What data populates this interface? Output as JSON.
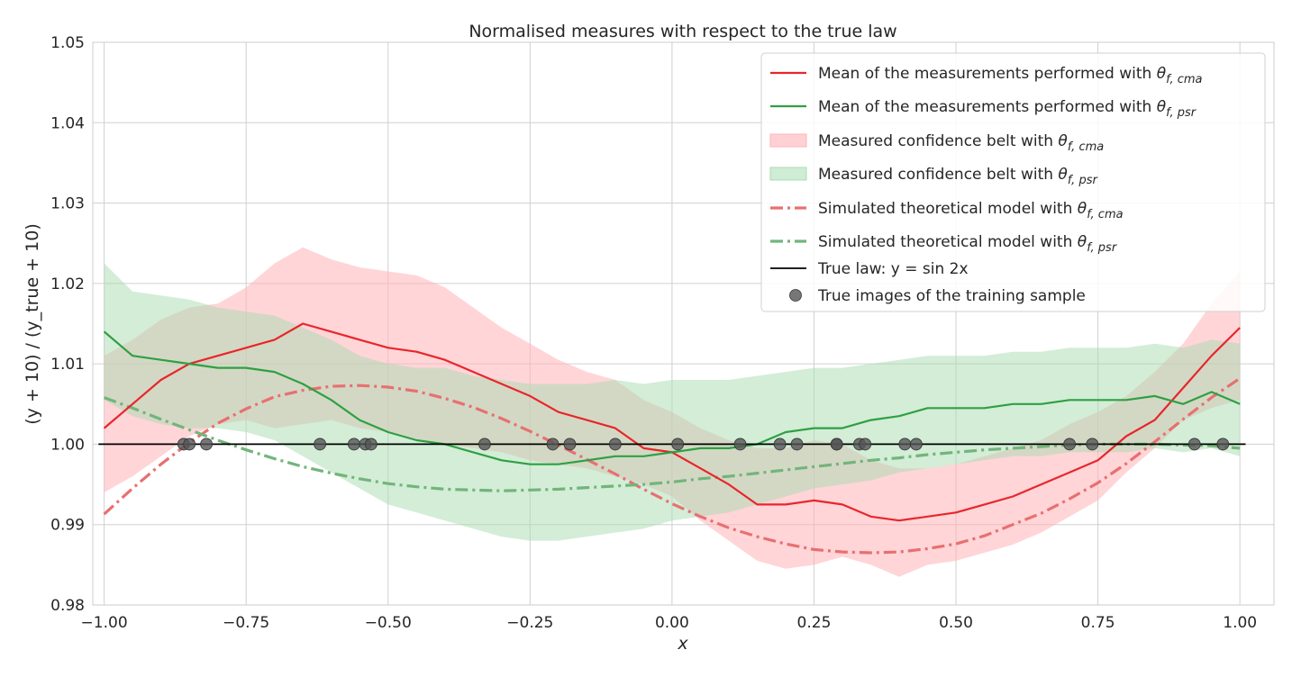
{
  "chart_data": {
    "type": "line",
    "title": "Normalised measures with respect to the true law",
    "xlabel": "x",
    "ylabel": "(y + 10) / (y_true + 10)",
    "xlim": [
      -1.02,
      1.06
    ],
    "ylim": [
      0.98,
      1.05
    ],
    "xticks": [
      -1.0,
      -0.75,
      -0.5,
      -0.25,
      0.0,
      0.25,
      0.5,
      0.75,
      1.0
    ],
    "xtick_labels": [
      "−1.00",
      "−0.75",
      "−0.50",
      "−0.25",
      "0.00",
      "0.25",
      "0.50",
      "0.75",
      "1.00"
    ],
    "yticks": [
      0.98,
      0.99,
      1.0,
      1.01,
      1.02,
      1.03,
      1.04,
      1.05
    ],
    "ytick_labels": [
      "0.98",
      "0.99",
      "1.00",
      "1.01",
      "1.02",
      "1.03",
      "1.04",
      "1.05"
    ],
    "grid": true,
    "legend_position": "top-right",
    "colors": {
      "cma_line": "#e8262b",
      "psr_line": "#2ea043",
      "cma_band": "#ffb3b8",
      "psr_band": "#a8dcb0",
      "cma_model": "#e87070",
      "psr_model": "#72b57a",
      "true_law": "#000000",
      "samples": "#555555"
    },
    "legend": [
      {
        "key": "cma_mean",
        "text": "Mean of the measurements performed with ",
        "math": "θ",
        "sub": "f, cma"
      },
      {
        "key": "psr_mean",
        "text": "Mean of the measurements performed with ",
        "math": "θ",
        "sub": "f, psr"
      },
      {
        "key": "cma_belt",
        "text": "Measured confidence belt with ",
        "math": "θ",
        "sub": "f, cma"
      },
      {
        "key": "psr_belt",
        "text": "Measured confidence belt with ",
        "math": "θ",
        "sub": "f, psr"
      },
      {
        "key": "cma_model",
        "text": "Simulated theoretical model with ",
        "math": "θ",
        "sub": "f, cma"
      },
      {
        "key": "psr_model",
        "text": "Simulated theoretical model with ",
        "math": "θ",
        "sub": "f, psr"
      },
      {
        "key": "true_law",
        "text": "True law: y = sin 2x",
        "math": "",
        "sub": ""
      },
      {
        "key": "samples",
        "text": "True images of the training sample",
        "math": "",
        "sub": ""
      }
    ],
    "series": [
      {
        "name": "Mean of the measurements performed with θ f, cma",
        "style": "solid",
        "x": [
          -1.0,
          -0.95,
          -0.9,
          -0.85,
          -0.8,
          -0.75,
          -0.7,
          -0.65,
          -0.6,
          -0.55,
          -0.5,
          -0.45,
          -0.4,
          -0.35,
          -0.3,
          -0.25,
          -0.2,
          -0.15,
          -0.1,
          -0.05,
          0.0,
          0.05,
          0.1,
          0.15,
          0.2,
          0.25,
          0.3,
          0.35,
          0.4,
          0.45,
          0.5,
          0.55,
          0.6,
          0.65,
          0.7,
          0.75,
          0.8,
          0.85,
          0.9,
          0.95,
          1.0
        ],
        "y": [
          1.002,
          1.005,
          1.008,
          1.01,
          1.011,
          1.012,
          1.013,
          1.015,
          1.014,
          1.013,
          1.012,
          1.0115,
          1.0105,
          1.009,
          1.0075,
          1.006,
          1.004,
          1.003,
          1.002,
          0.9995,
          0.999,
          0.997,
          0.995,
          0.9925,
          0.9925,
          0.993,
          0.9925,
          0.991,
          0.9905,
          0.991,
          0.9915,
          0.9925,
          0.9935,
          0.995,
          0.9965,
          0.998,
          1.001,
          1.003,
          1.007,
          1.011,
          1.0145
        ]
      },
      {
        "name": "Mean of the measurements performed with θ f, psr",
        "style": "solid",
        "x": [
          -1.0,
          -0.95,
          -0.9,
          -0.85,
          -0.8,
          -0.75,
          -0.7,
          -0.65,
          -0.6,
          -0.55,
          -0.5,
          -0.45,
          -0.4,
          -0.35,
          -0.3,
          -0.25,
          -0.2,
          -0.15,
          -0.1,
          -0.05,
          0.0,
          0.05,
          0.1,
          0.15,
          0.2,
          0.25,
          0.3,
          0.35,
          0.4,
          0.45,
          0.5,
          0.55,
          0.6,
          0.65,
          0.7,
          0.75,
          0.8,
          0.85,
          0.9,
          0.95,
          1.0
        ],
        "y": [
          1.014,
          1.011,
          1.0105,
          1.01,
          1.0095,
          1.0095,
          1.009,
          1.0075,
          1.0055,
          1.003,
          1.0015,
          1.0005,
          1.0,
          0.999,
          0.998,
          0.9975,
          0.9975,
          0.998,
          0.9985,
          0.9985,
          0.999,
          0.9995,
          0.9995,
          1.0,
          1.0015,
          1.002,
          1.002,
          1.003,
          1.0035,
          1.0045,
          1.0045,
          1.0045,
          1.005,
          1.005,
          1.0055,
          1.0055,
          1.0055,
          1.006,
          1.005,
          1.0065,
          1.005
        ]
      },
      {
        "name": "Simulated theoretical model with θ f, cma",
        "style": "dashdot",
        "x": [
          -1.0,
          -0.95,
          -0.9,
          -0.85,
          -0.8,
          -0.75,
          -0.7,
          -0.65,
          -0.6,
          -0.55,
          -0.5,
          -0.45,
          -0.4,
          -0.35,
          -0.3,
          -0.25,
          -0.2,
          -0.15,
          -0.1,
          -0.05,
          0.0,
          0.05,
          0.1,
          0.15,
          0.2,
          0.25,
          0.3,
          0.35,
          0.4,
          0.45,
          0.5,
          0.55,
          0.6,
          0.65,
          0.7,
          0.75,
          0.8,
          0.85,
          0.9,
          0.95,
          1.0
        ],
        "y": [
          0.9913,
          0.9945,
          0.9975,
          1.0002,
          1.0026,
          1.0044,
          1.0059,
          1.0067,
          1.0072,
          1.0073,
          1.0071,
          1.0066,
          1.0057,
          1.0046,
          1.0032,
          1.0016,
          0.9999,
          0.9981,
          0.9963,
          0.9944,
          0.9926,
          0.991,
          0.9896,
          0.9885,
          0.9876,
          0.9869,
          0.9866,
          0.9865,
          0.9866,
          0.987,
          0.9876,
          0.9886,
          0.99,
          0.9914,
          0.9932,
          0.9952,
          0.9976,
          1.0003,
          1.0031,
          1.0058,
          1.0082
        ]
      },
      {
        "name": "Simulated theoretical model with θ f, psr",
        "style": "dashdot",
        "x": [
          -1.0,
          -0.95,
          -0.9,
          -0.85,
          -0.8,
          -0.75,
          -0.7,
          -0.65,
          -0.6,
          -0.55,
          -0.5,
          -0.45,
          -0.4,
          -0.35,
          -0.3,
          -0.25,
          -0.2,
          -0.15,
          -0.1,
          -0.05,
          0.0,
          0.05,
          0.1,
          0.15,
          0.2,
          0.25,
          0.3,
          0.35,
          0.4,
          0.45,
          0.5,
          0.55,
          0.6,
          0.65,
          0.7,
          0.75,
          0.8,
          0.85,
          0.9,
          0.95,
          1.0
        ],
        "y": [
          1.0058,
          1.0045,
          1.0031,
          1.0018,
          1.0005,
          0.9993,
          0.9982,
          0.9972,
          0.9964,
          0.9957,
          0.9951,
          0.9947,
          0.9944,
          0.9943,
          0.9942,
          0.9943,
          0.9944,
          0.9946,
          0.9948,
          0.995,
          0.9953,
          0.9957,
          0.996,
          0.9964,
          0.9968,
          0.9972,
          0.9976,
          0.998,
          0.9983,
          0.9987,
          0.999,
          0.9993,
          0.9995,
          0.9997,
          0.9999,
          1.0,
          1.0,
          1.0,
          0.9999,
          0.9998,
          0.9995
        ]
      },
      {
        "name": "True law: y = sin 2x",
        "style": "solid",
        "x": [
          -1.01,
          1.01
        ],
        "y": [
          1.0,
          1.0
        ]
      }
    ],
    "bands": [
      {
        "name": "Measured confidence belt with θ f, cma",
        "x": [
          -1.0,
          -0.95,
          -0.9,
          -0.85,
          -0.8,
          -0.75,
          -0.7,
          -0.65,
          -0.6,
          -0.55,
          -0.5,
          -0.45,
          -0.4,
          -0.35,
          -0.3,
          -0.25,
          -0.2,
          -0.15,
          -0.1,
          -0.05,
          0.0,
          0.05,
          0.1,
          0.15,
          0.2,
          0.25,
          0.3,
          0.35,
          0.4,
          0.45,
          0.5,
          0.55,
          0.6,
          0.65,
          0.7,
          0.75,
          0.8,
          0.85,
          0.9,
          0.95,
          1.0
        ],
        "lower": [
          0.994,
          0.996,
          0.9985,
          1.001,
          1.0025,
          1.003,
          1.002,
          1.0025,
          1.003,
          1.002,
          1.0015,
          1.0005,
          1.0,
          0.9995,
          0.999,
          0.998,
          0.9975,
          0.997,
          0.996,
          0.995,
          0.9935,
          0.9905,
          0.988,
          0.9855,
          0.9845,
          0.985,
          0.986,
          0.985,
          0.9835,
          0.985,
          0.9855,
          0.9865,
          0.9875,
          0.989,
          0.991,
          0.993,
          0.9965,
          0.9995,
          1.003,
          1.0045,
          1.0055
        ],
        "upper": [
          1.011,
          1.013,
          1.0155,
          1.017,
          1.0175,
          1.0195,
          1.0225,
          1.0245,
          1.023,
          1.022,
          1.0215,
          1.021,
          1.0195,
          1.017,
          1.0145,
          1.0125,
          1.0105,
          1.009,
          1.008,
          1.0055,
          1.004,
          1.002,
          1.0005,
          0.9995,
          0.9995,
          1.0005,
          1.0,
          0.998,
          0.997,
          0.997,
          0.9975,
          0.9985,
          0.9995,
          1.0005,
          1.0025,
          1.004,
          1.006,
          1.009,
          1.0125,
          1.0175,
          1.0215
        ]
      },
      {
        "name": "Measured confidence belt with θ f, psr",
        "x": [
          -1.0,
          -0.95,
          -0.9,
          -0.85,
          -0.8,
          -0.75,
          -0.7,
          -0.65,
          -0.6,
          -0.55,
          -0.5,
          -0.45,
          -0.4,
          -0.35,
          -0.3,
          -0.25,
          -0.2,
          -0.15,
          -0.1,
          -0.05,
          0.0,
          0.05,
          0.1,
          0.15,
          0.2,
          0.25,
          0.3,
          0.35,
          0.4,
          0.45,
          0.5,
          0.55,
          0.6,
          0.65,
          0.7,
          0.75,
          0.8,
          0.85,
          0.9,
          0.95,
          1.0
        ],
        "lower": [
          1.0055,
          1.0035,
          1.0025,
          1.002,
          1.002,
          1.0015,
          1.0005,
          0.9985,
          0.9965,
          0.9945,
          0.9925,
          0.9915,
          0.9905,
          0.9895,
          0.9885,
          0.988,
          0.988,
          0.9885,
          0.989,
          0.9895,
          0.9905,
          0.991,
          0.9915,
          0.9925,
          0.9935,
          0.9945,
          0.995,
          0.9955,
          0.9965,
          0.997,
          0.9975,
          0.998,
          0.9985,
          0.9985,
          0.999,
          0.999,
          0.999,
          0.9995,
          0.999,
          0.9995,
          0.9985
        ],
        "upper": [
          1.0225,
          1.019,
          1.0185,
          1.018,
          1.017,
          1.0165,
          1.016,
          1.0145,
          1.013,
          1.011,
          1.01,
          1.0095,
          1.0095,
          1.0085,
          1.008,
          1.0075,
          1.0075,
          1.0075,
          1.008,
          1.0075,
          1.008,
          1.008,
          1.008,
          1.0085,
          1.009,
          1.0095,
          1.0095,
          1.01,
          1.0105,
          1.011,
          1.011,
          1.011,
          1.0115,
          1.0115,
          1.012,
          1.012,
          1.012,
          1.0125,
          1.012,
          1.013,
          1.0125
        ]
      }
    ],
    "scatter": {
      "name": "True images of the training sample",
      "x": [
        -0.86,
        -0.85,
        -0.82,
        -0.62,
        -0.56,
        -0.54,
        -0.53,
        -0.33,
        -0.21,
        -0.18,
        -0.1,
        0.01,
        0.12,
        0.19,
        0.22,
        0.29,
        0.29,
        0.33,
        0.34,
        0.41,
        0.43,
        0.7,
        0.74,
        0.92,
        0.97
      ],
      "y": [
        1.0,
        1.0,
        1.0,
        1.0,
        1.0,
        1.0,
        1.0,
        1.0,
        1.0,
        1.0,
        1.0,
        1.0,
        1.0,
        1.0,
        1.0,
        1.0,
        1.0,
        1.0,
        1.0,
        1.0,
        1.0,
        1.0,
        1.0,
        1.0,
        1.0
      ]
    }
  }
}
